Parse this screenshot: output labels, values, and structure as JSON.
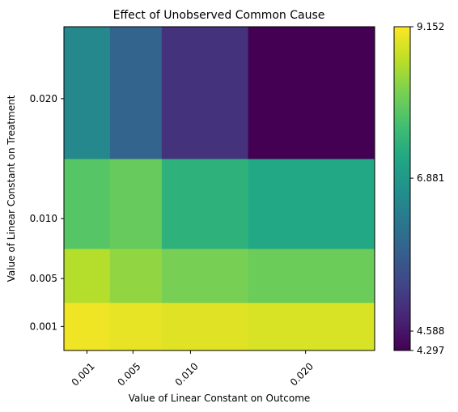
{
  "chart_data": {
    "type": "heatmap",
    "title": "Effect of Unobserved Common Cause",
    "xlabel": "Value of Linear Constant on Outcome",
    "ylabel": "Value of Linear Constant on Treatment",
    "x": [
      0.001,
      0.005,
      0.01,
      0.02
    ],
    "y": [
      0.001,
      0.005,
      0.01,
      0.02
    ],
    "x_tick_labels": [
      "0.001",
      "0.005",
      "0.010",
      "0.020"
    ],
    "y_tick_labels": [
      "0.001",
      "0.005",
      "0.010",
      "0.020"
    ],
    "xlim": [
      -0.001,
      0.026
    ],
    "ylim": [
      -0.001,
      0.026
    ],
    "values": [
      [
        9.05,
        8.98,
        8.93,
        8.88
      ],
      [
        8.6,
        8.35,
        8.15,
        8.05
      ],
      [
        7.85,
        8.0,
        7.4,
        7.2
      ],
      [
        6.55,
        5.85,
        5.0,
        4.3
      ]
    ],
    "colormap": "viridis",
    "colorbar": {
      "min": 4.297,
      "max": 9.152,
      "tick_values": [
        4.297,
        4.588,
        6.881,
        9.152
      ],
      "tick_labels": [
        "4.297",
        "4.588",
        "6.881",
        "9.152"
      ]
    },
    "grid": false
  }
}
